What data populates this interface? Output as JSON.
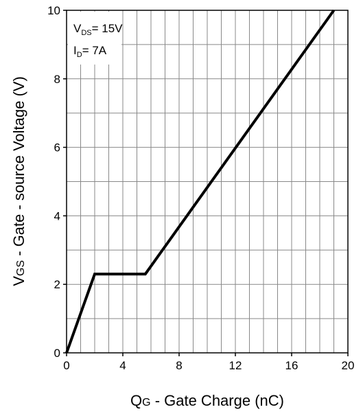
{
  "chart_data": {
    "type": "line",
    "title": "",
    "xlabel": {
      "main": "Q",
      "sub": "G",
      "rest": " - Gate Charge (nC)"
    },
    "ylabel": {
      "main": "V",
      "sub": "GS",
      "rest": " - Gate - source Voltage (V)"
    },
    "xlim": [
      0,
      20
    ],
    "ylim": [
      0,
      10
    ],
    "xticks": [
      0,
      4,
      8,
      12,
      16,
      20
    ],
    "yticks": [
      0,
      2,
      4,
      6,
      8,
      10
    ],
    "x_minor_step": 1,
    "y_minor_step": 1,
    "grid": true,
    "series": [
      {
        "x": [
          0,
          2,
          5.6,
          19
        ],
        "y": [
          0,
          2.3,
          2.3,
          10
        ]
      }
    ],
    "annotations": [
      {
        "main": "V",
        "sub": "DS",
        "rest": "= 15V"
      },
      {
        "main": "I",
        "sub": "D",
        "rest": "= 7A"
      }
    ],
    "colors": {
      "line": "#000000",
      "grid": "#888888",
      "frame": "#000000"
    }
  }
}
